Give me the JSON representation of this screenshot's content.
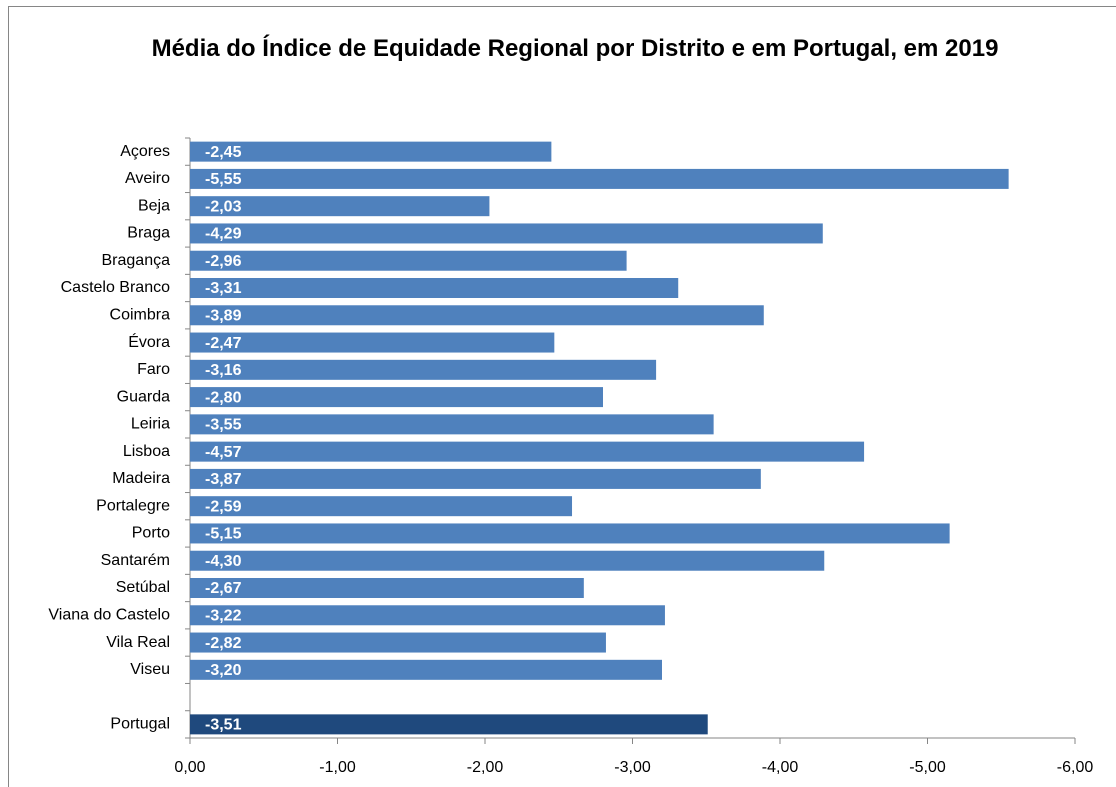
{
  "chart_data": {
    "type": "barh",
    "title": "Média do Índice de Equidade Regional por Distrito  e em Portugal, em 2019",
    "categories": [
      "Açores",
      "Aveiro",
      "Beja",
      "Braga",
      "Bragança",
      "Castelo Branco",
      "Coimbra",
      "Évora",
      "Faro",
      "Guarda",
      "Leiria",
      "Lisboa",
      "Madeira",
      "Portalegre",
      "Porto",
      "Santarém",
      "Setúbal",
      "Viana do Castelo",
      "Vila Real",
      "Viseu",
      null,
      "Portugal"
    ],
    "values": [
      -2.45,
      -5.55,
      -2.03,
      -4.29,
      -2.96,
      -3.31,
      -3.89,
      -2.47,
      -3.16,
      -2.8,
      -3.55,
      -4.57,
      -3.87,
      -2.59,
      -5.15,
      -4.3,
      -2.67,
      -3.22,
      -2.82,
      -3.2,
      null,
      -3.51
    ],
    "value_labels": [
      "-2,45",
      "-5,55",
      "-2,03",
      "-4,29",
      "-2,96",
      "-3,31",
      "-3,89",
      "-2,47",
      "-3,16",
      "-2,80",
      "-3,55",
      "-4,57",
      "-3,87",
      "-2,59",
      "-5,15",
      "-4,30",
      "-2,67",
      "-3,22",
      "-2,82",
      "-3,20",
      null,
      "-3,51"
    ],
    "colors": [
      "#4f81bd",
      "#4f81bd",
      "#4f81bd",
      "#4f81bd",
      "#4f81bd",
      "#4f81bd",
      "#4f81bd",
      "#4f81bd",
      "#4f81bd",
      "#4f81bd",
      "#4f81bd",
      "#4f81bd",
      "#4f81bd",
      "#4f81bd",
      "#4f81bd",
      "#4f81bd",
      "#4f81bd",
      "#4f81bd",
      "#4f81bd",
      "#4f81bd",
      null,
      "#1f497d"
    ],
    "xlim": [
      0,
      -6
    ],
    "xticks": [
      {
        "value": 0,
        "label": "0,00"
      },
      {
        "value": -1,
        "label": "-1,00"
      },
      {
        "value": -2,
        "label": "-2,00"
      },
      {
        "value": -3,
        "label": "-3,00"
      },
      {
        "value": -4,
        "label": "-4,00"
      },
      {
        "value": -5,
        "label": "-5,00"
      },
      {
        "value": -6,
        "label": "-6,00"
      }
    ],
    "grid": false
  }
}
